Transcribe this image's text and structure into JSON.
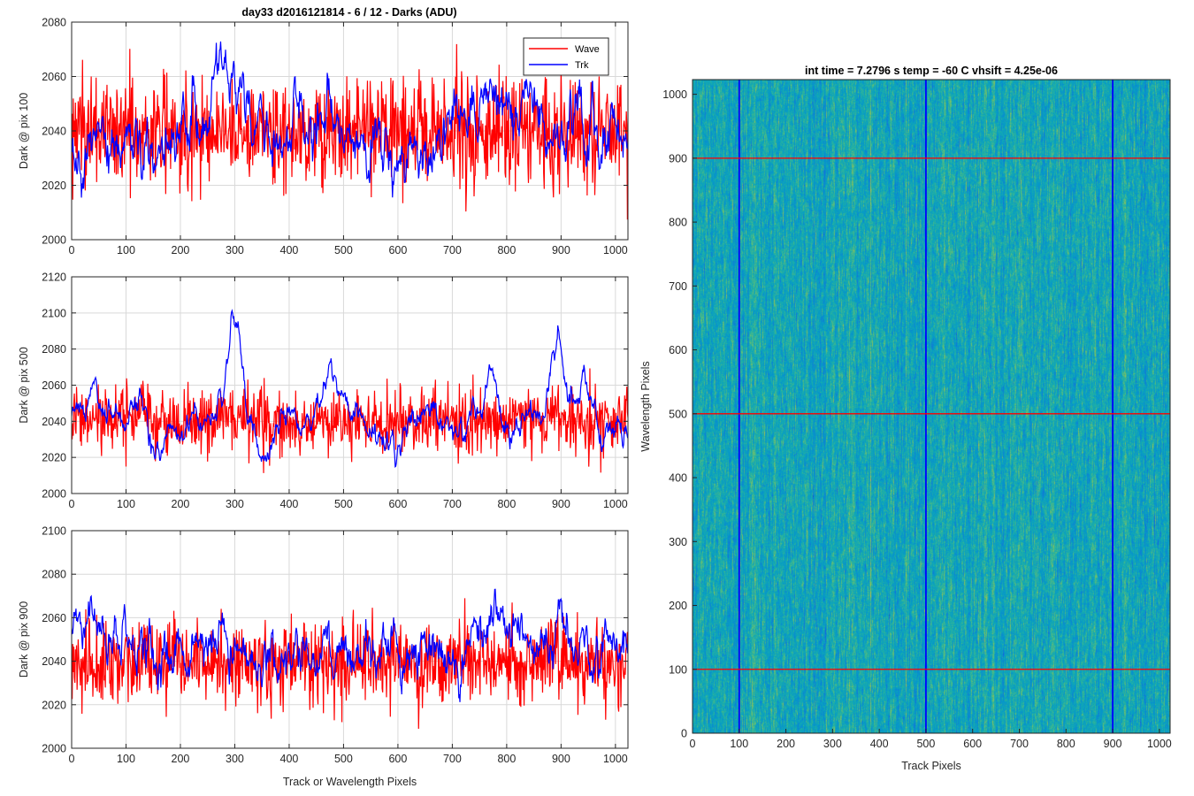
{
  "figure": {
    "suptitle": "day33 d2016121814 - 6 / 12 - Darks (ADU)"
  },
  "colors": {
    "wave": "#ff0000",
    "trk": "#0000ff",
    "grid": "#d9d9d9",
    "axis": "#262626"
  },
  "chart_data": [
    {
      "type": "line",
      "ylabel": "Dark @ pix 100",
      "xlabel": "",
      "xlim": [
        0,
        1023
      ],
      "ylim": [
        2000,
        2080
      ],
      "xticks": [
        0,
        100,
        200,
        300,
        400,
        500,
        600,
        700,
        800,
        900,
        1000
      ],
      "yticks": [
        2000,
        2020,
        2040,
        2060,
        2080
      ],
      "grid": true,
      "legend": {
        "location": "top-right",
        "entries": [
          "Wave",
          "Trk"
        ]
      },
      "series": [
        {
          "name": "Wave",
          "color": "red",
          "n_points": 1024,
          "mean": 2040,
          "noise_sd": 10,
          "smoothness": 0.0,
          "bumps": []
        },
        {
          "name": "Trk",
          "color": "blue",
          "n_points": 1024,
          "mean": 2038,
          "noise_sd": 8,
          "smoothness": 0.9,
          "bumps": [
            {
              "x": 25,
              "amp": -12,
              "width": 30
            },
            {
              "x": 150,
              "amp": -4,
              "width": 40
            },
            {
              "x": 255,
              "amp": 12,
              "width": 60
            },
            {
              "x": 470,
              "amp": 5,
              "width": 50
            },
            {
              "x": 620,
              "amp": -3,
              "width": 60
            },
            {
              "x": 745,
              "amp": 8,
              "width": 40
            },
            {
              "x": 905,
              "amp": 6,
              "width": 60
            }
          ]
        }
      ]
    },
    {
      "type": "line",
      "ylabel": "Dark @ pix 500",
      "xlabel": "",
      "xlim": [
        0,
        1023
      ],
      "ylim": [
        2000,
        2120
      ],
      "xticks": [
        0,
        100,
        200,
        300,
        400,
        500,
        600,
        700,
        800,
        900,
        1000
      ],
      "yticks": [
        2000,
        2020,
        2040,
        2060,
        2080,
        2100,
        2120
      ],
      "grid": true,
      "series": [
        {
          "name": "Wave",
          "color": "red",
          "n_points": 1024,
          "mean": 2040,
          "noise_sd": 9,
          "smoothness": 0.0,
          "bumps": []
        },
        {
          "name": "Trk",
          "color": "blue",
          "n_points": 1024,
          "mean": 2042,
          "noise_sd": 6,
          "smoothness": 0.9,
          "bumps": [
            {
              "x": 40,
              "amp": 15,
              "width": 15
            },
            {
              "x": 160,
              "amp": -10,
              "width": 20
            },
            {
              "x": 300,
              "amp": 55,
              "width": 12
            },
            {
              "x": 350,
              "amp": -18,
              "width": 15
            },
            {
              "x": 475,
              "amp": 30,
              "width": 15
            },
            {
              "x": 520,
              "amp": 12,
              "width": 12
            },
            {
              "x": 600,
              "amp": -10,
              "width": 20
            },
            {
              "x": 770,
              "amp": 35,
              "width": 8
            },
            {
              "x": 815,
              "amp": -15,
              "width": 15
            },
            {
              "x": 895,
              "amp": 40,
              "width": 12
            },
            {
              "x": 940,
              "amp": 15,
              "width": 15
            }
          ]
        }
      ]
    },
    {
      "type": "line",
      "ylabel": "Dark @ pix 900",
      "xlabel": "Track or Wavelength Pixels",
      "xlim": [
        0,
        1023
      ],
      "ylim": [
        2000,
        2100
      ],
      "xticks": [
        0,
        100,
        200,
        300,
        400,
        500,
        600,
        700,
        800,
        900,
        1000
      ],
      "yticks": [
        2000,
        2020,
        2040,
        2060,
        2080,
        2100
      ],
      "grid": true,
      "series": [
        {
          "name": "Wave",
          "color": "red",
          "n_points": 1024,
          "mean": 2039,
          "noise_sd": 10,
          "smoothness": 0.0,
          "bumps": []
        },
        {
          "name": "Trk",
          "color": "blue",
          "n_points": 1024,
          "mean": 2045,
          "noise_sd": 7,
          "smoothness": 0.85,
          "bumps": [
            {
              "x": 15,
              "amp": 12,
              "width": 20
            },
            {
              "x": 65,
              "amp": 15,
              "width": 20
            },
            {
              "x": 340,
              "amp": -5,
              "width": 40
            },
            {
              "x": 780,
              "amp": 15,
              "width": 30
            },
            {
              "x": 900,
              "amp": 20,
              "width": 8
            }
          ]
        }
      ]
    },
    {
      "type": "heatmap",
      "title": "int time = 7.2796 s    temp = -60 C    vhsift = 4.25e-06",
      "xlabel": "Track Pixels",
      "ylabel": "Wavelength Pixels",
      "xlim": [
        0,
        1023
      ],
      "ylim": [
        0,
        1023
      ],
      "xticks": [
        0,
        100,
        200,
        300,
        400,
        500,
        600,
        700,
        800,
        900,
        1000
      ],
      "yticks": [
        0,
        100,
        200,
        300,
        400,
        500,
        600,
        700,
        800,
        900,
        1000
      ],
      "colormap": "parula",
      "value_range": [
        2000,
        2100
      ],
      "typical_value": 2040,
      "vertical_markers": {
        "color": "blue",
        "x": [
          100,
          500,
          900
        ]
      },
      "horizontal_markers": {
        "color": "red",
        "y": [
          100,
          500,
          900
        ]
      }
    }
  ]
}
